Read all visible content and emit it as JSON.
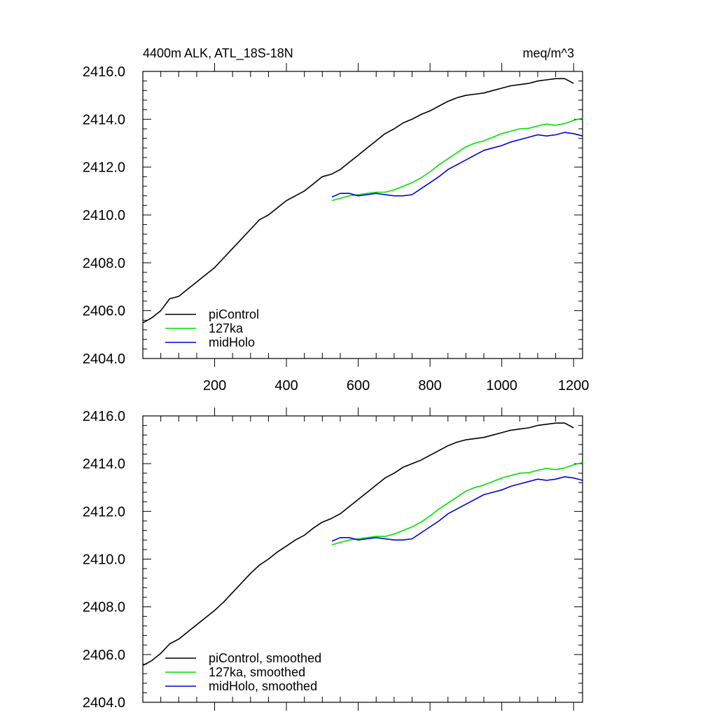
{
  "figure": {
    "title_left": "4400m ALK, ATL_18S-18N",
    "title_right": "meq/m^3"
  },
  "chart_data": [
    {
      "type": "line",
      "xlim": [
        0,
        1225
      ],
      "ylim": [
        2404,
        2416
      ],
      "yticks": [
        2404,
        2406,
        2408,
        2410,
        2412,
        2414,
        2416
      ],
      "ytick_labels": [
        "2404.0",
        "2406.0",
        "2408.0",
        "2410.0",
        "2412.0",
        "2414.0",
        "2416.0"
      ],
      "xticks": [
        200,
        400,
        600,
        800,
        1000,
        1200
      ],
      "xtick_labels": [
        "200",
        "400",
        "600",
        "800",
        "1000",
        "1200"
      ],
      "legend_position": "bottom-left",
      "grid": false,
      "series": [
        {
          "name": "piControl",
          "color": "#000000",
          "x": [
            1,
            25,
            50,
            75,
            100,
            125,
            150,
            175,
            200,
            225,
            250,
            275,
            300,
            325,
            350,
            375,
            400,
            425,
            450,
            475,
            500,
            525,
            550,
            575,
            600,
            625,
            650,
            675,
            700,
            725,
            750,
            775,
            800,
            825,
            850,
            875,
            900,
            925,
            950,
            975,
            1000,
            1025,
            1050,
            1075,
            1100,
            1125,
            1150,
            1175,
            1200
          ],
          "y": [
            2405.5,
            2405.7,
            2406.0,
            2406.5,
            2406.6,
            2406.9,
            2407.2,
            2407.5,
            2407.8,
            2408.2,
            2408.6,
            2409.0,
            2409.4,
            2409.8,
            2410.0,
            2410.3,
            2410.6,
            2410.8,
            2411.0,
            2411.3,
            2411.6,
            2411.7,
            2411.9,
            2412.2,
            2412.5,
            2412.8,
            2413.1,
            2413.4,
            2413.6,
            2413.85,
            2414.0,
            2414.2,
            2414.35,
            2414.55,
            2414.75,
            2414.9,
            2415.0,
            2415.05,
            2415.1,
            2415.2,
            2415.3,
            2415.4,
            2415.45,
            2415.5,
            2415.6,
            2415.65,
            2415.7,
            2415.7,
            2415.5
          ]
        },
        {
          "name": "127ka",
          "color": "#00e000",
          "x": [
            527,
            550,
            575,
            600,
            625,
            650,
            675,
            700,
            725,
            750,
            775,
            800,
            825,
            850,
            875,
            900,
            925,
            950,
            975,
            1000,
            1025,
            1050,
            1075,
            1100,
            1125,
            1150,
            1175,
            1200,
            1225
          ],
          "y": [
            2410.6,
            2410.7,
            2410.8,
            2410.85,
            2410.9,
            2410.95,
            2410.95,
            2411.05,
            2411.2,
            2411.35,
            2411.55,
            2411.8,
            2412.1,
            2412.35,
            2412.6,
            2412.85,
            2413.0,
            2413.1,
            2413.25,
            2413.4,
            2413.5,
            2413.6,
            2413.62,
            2413.72,
            2413.8,
            2413.75,
            2413.82,
            2413.95,
            2414.05
          ]
        },
        {
          "name": "midHolo",
          "color": "#0000e0",
          "x": [
            527,
            550,
            575,
            600,
            625,
            650,
            675,
            700,
            725,
            750,
            775,
            800,
            825,
            850,
            875,
            900,
            925,
            950,
            975,
            1000,
            1025,
            1050,
            1075,
            1100,
            1125,
            1150,
            1175,
            1200,
            1225
          ],
          "y": [
            2410.75,
            2410.9,
            2410.9,
            2410.8,
            2410.85,
            2410.9,
            2410.85,
            2410.8,
            2410.8,
            2410.85,
            2411.1,
            2411.35,
            2411.6,
            2411.9,
            2412.1,
            2412.3,
            2412.5,
            2412.7,
            2412.8,
            2412.9,
            2413.05,
            2413.15,
            2413.25,
            2413.35,
            2413.3,
            2413.35,
            2413.45,
            2413.4,
            2413.3
          ]
        }
      ]
    },
    {
      "type": "line",
      "xlim": [
        0,
        1225
      ],
      "ylim": [
        2404,
        2416
      ],
      "yticks": [
        2404,
        2406,
        2408,
        2410,
        2412,
        2414,
        2416
      ],
      "ytick_labels": [
        "2404.0",
        "2406.0",
        "2408.0",
        "2410.0",
        "2412.0",
        "2414.0",
        "2416.0"
      ],
      "xticks": [
        200,
        400,
        600,
        800,
        1000,
        1200
      ],
      "xtick_labels": [],
      "legend_position": "bottom-left",
      "grid": false,
      "series": [
        {
          "name": "piControl, smoothed",
          "color": "#000000",
          "x": [
            1,
            25,
            50,
            75,
            100,
            125,
            150,
            175,
            200,
            225,
            250,
            275,
            300,
            325,
            350,
            375,
            400,
            425,
            450,
            475,
            500,
            525,
            550,
            575,
            600,
            625,
            650,
            675,
            700,
            725,
            750,
            775,
            800,
            825,
            850,
            875,
            900,
            925,
            950,
            975,
            1000,
            1025,
            1050,
            1075,
            1100,
            1125,
            1150,
            1175,
            1200
          ],
          "y": [
            2405.55,
            2405.75,
            2406.05,
            2406.45,
            2406.65,
            2406.95,
            2407.25,
            2407.55,
            2407.85,
            2408.2,
            2408.6,
            2409.0,
            2409.4,
            2409.75,
            2410.0,
            2410.3,
            2410.55,
            2410.8,
            2411.0,
            2411.3,
            2411.55,
            2411.7,
            2411.9,
            2412.2,
            2412.5,
            2412.8,
            2413.1,
            2413.4,
            2413.6,
            2413.85,
            2414.0,
            2414.15,
            2414.35,
            2414.55,
            2414.75,
            2414.9,
            2415.0,
            2415.05,
            2415.1,
            2415.2,
            2415.3,
            2415.4,
            2415.45,
            2415.5,
            2415.6,
            2415.65,
            2415.7,
            2415.7,
            2415.5
          ]
        },
        {
          "name": "127ka, smoothed",
          "color": "#00e000",
          "x": [
            527,
            550,
            575,
            600,
            625,
            650,
            675,
            700,
            725,
            750,
            775,
            800,
            825,
            850,
            875,
            900,
            925,
            950,
            975,
            1000,
            1025,
            1050,
            1075,
            1100,
            1125,
            1150,
            1175,
            1200,
            1225
          ],
          "y": [
            2410.6,
            2410.7,
            2410.8,
            2410.85,
            2410.9,
            2410.95,
            2410.95,
            2411.05,
            2411.2,
            2411.35,
            2411.55,
            2411.8,
            2412.1,
            2412.35,
            2412.6,
            2412.85,
            2413.0,
            2413.1,
            2413.25,
            2413.4,
            2413.5,
            2413.6,
            2413.62,
            2413.72,
            2413.8,
            2413.75,
            2413.82,
            2413.95,
            2414.05
          ]
        },
        {
          "name": "midHolo, smoothed",
          "color": "#0000e0",
          "x": [
            527,
            550,
            575,
            600,
            625,
            650,
            675,
            700,
            725,
            750,
            775,
            800,
            825,
            850,
            875,
            900,
            925,
            950,
            975,
            1000,
            1025,
            1050,
            1075,
            1100,
            1125,
            1150,
            1175,
            1200,
            1225
          ],
          "y": [
            2410.75,
            2410.9,
            2410.9,
            2410.8,
            2410.85,
            2410.9,
            2410.85,
            2410.8,
            2410.8,
            2410.85,
            2411.1,
            2411.35,
            2411.6,
            2411.9,
            2412.1,
            2412.3,
            2412.5,
            2412.7,
            2412.8,
            2412.9,
            2413.05,
            2413.15,
            2413.25,
            2413.35,
            2413.3,
            2413.35,
            2413.45,
            2413.4,
            2413.3
          ]
        }
      ]
    }
  ]
}
